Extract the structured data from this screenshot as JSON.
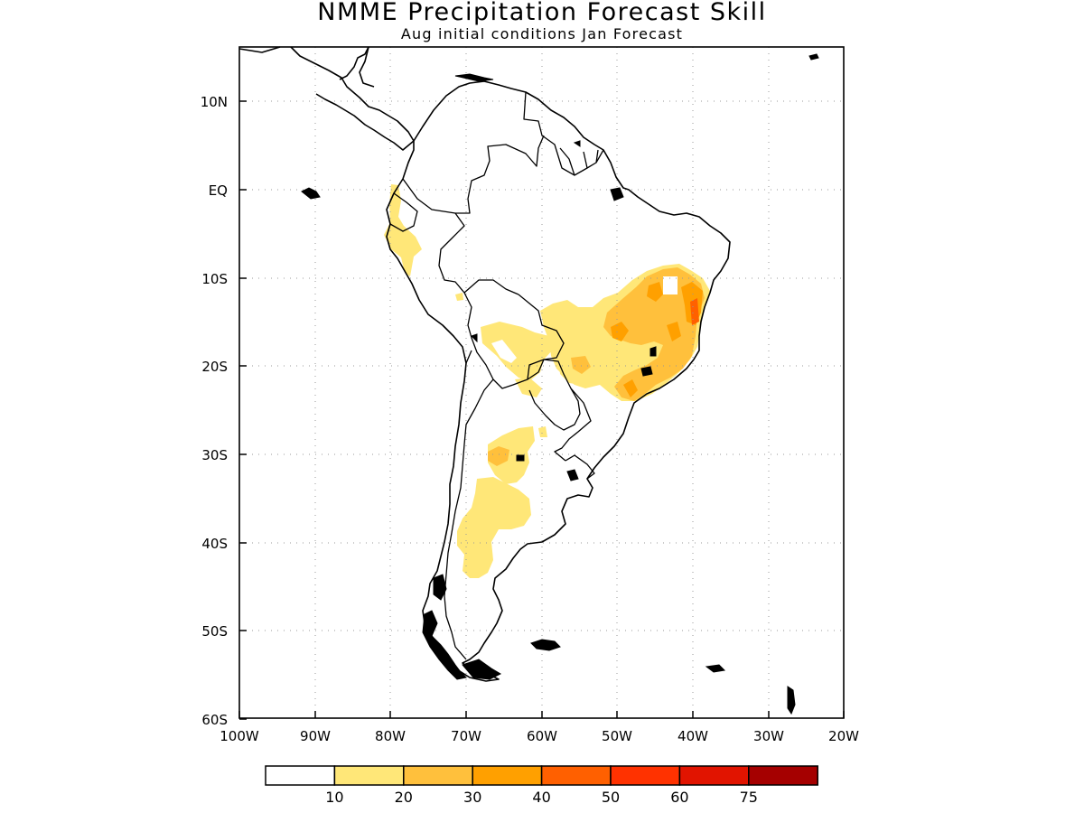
{
  "title": "NMME Precipitation Forecast Skill",
  "subtitle": "Aug initial conditions  Jan Forecast",
  "colors": {
    "c0": "#ffffff",
    "c1": "#ffe778",
    "c2": "#ffc03c",
    "c3": "#ffa000",
    "c4": "#ff6000",
    "c5": "#ff3200",
    "c6": "#e11400",
    "c7": "#a50000"
  },
  "axes": {
    "lon_labels": [
      "100W",
      "90W",
      "80W",
      "70W",
      "60W",
      "50W",
      "40W",
      "30W",
      "20W"
    ],
    "lat_labels": [
      "10N",
      "EQ",
      "10S",
      "20S",
      "30S",
      "40S",
      "50S",
      "60S"
    ]
  },
  "colorbar": {
    "labels": [
      "10",
      "20",
      "30",
      "40",
      "50",
      "60",
      "75"
    ],
    "bins": [
      {
        "min": null,
        "max": 10,
        "color": "#ffffff"
      },
      {
        "min": 10,
        "max": 20,
        "color": "#ffe778"
      },
      {
        "min": 20,
        "max": 30,
        "color": "#ffc03c"
      },
      {
        "min": 30,
        "max": 40,
        "color": "#ffa000"
      },
      {
        "min": 40,
        "max": 50,
        "color": "#ff6000"
      },
      {
        "min": 50,
        "max": 60,
        "color": "#ff3200"
      },
      {
        "min": 60,
        "max": 75,
        "color": "#e11400"
      },
      {
        "min": 75,
        "max": null,
        "color": "#a50000"
      }
    ]
  }
}
